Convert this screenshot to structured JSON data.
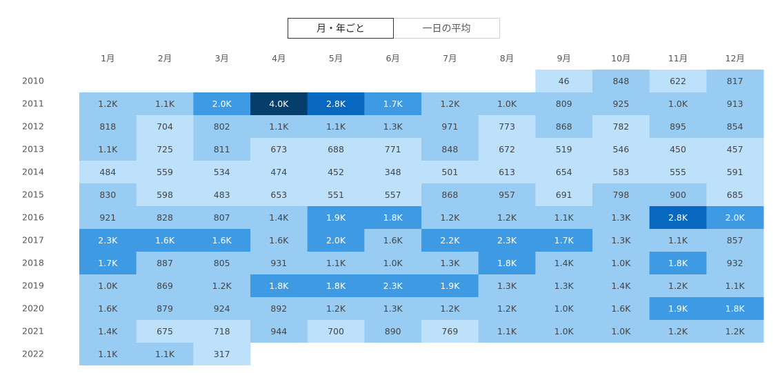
{
  "toggle": {
    "monthly_label": "月・年ごと",
    "daily_label": "一日の平均",
    "active": "monthly"
  },
  "chart_data": {
    "type": "heatmap",
    "title": "",
    "xlabel": "",
    "ylabel": "",
    "grid": false,
    "legend": "none",
    "color_scale": [
      "#bde0fb",
      "#98ccf3",
      "#3e9be3",
      "#0868bf",
      "#063e6b"
    ],
    "x": [
      "1月",
      "2月",
      "3月",
      "4月",
      "5月",
      "6月",
      "7月",
      "8月",
      "9月",
      "10月",
      "11月",
      "12月"
    ],
    "y": [
      "2010",
      "2011",
      "2012",
      "2013",
      "2014",
      "2015",
      "2016",
      "2017",
      "2018",
      "2019",
      "2020",
      "2021",
      "2022"
    ],
    "values": [
      [
        null,
        null,
        null,
        null,
        null,
        null,
        null,
        null,
        46,
        848,
        622,
        817
      ],
      [
        1200,
        1100,
        2000,
        4000,
        2800,
        1700,
        1200,
        1000,
        809,
        925,
        1000,
        913
      ],
      [
        818,
        704,
        802,
        1100,
        1100,
        1300,
        971,
        773,
        868,
        782,
        895,
        854
      ],
      [
        1100,
        725,
        811,
        673,
        688,
        771,
        848,
        672,
        519,
        546,
        450,
        457
      ],
      [
        484,
        559,
        534,
        474,
        452,
        348,
        501,
        613,
        654,
        583,
        555,
        591
      ],
      [
        830,
        598,
        483,
        653,
        551,
        557,
        868,
        957,
        691,
        798,
        900,
        685
      ],
      [
        921,
        828,
        807,
        1400,
        1900,
        1800,
        1200,
        1200,
        1100,
        1300,
        2800,
        2000
      ],
      [
        2300,
        1600,
        1600,
        1600,
        2000,
        1600,
        2200,
        2300,
        1700,
        1300,
        1100,
        857
      ],
      [
        1700,
        887,
        805,
        931,
        1100,
        1000,
        1300,
        1800,
        1400,
        1000,
        1800,
        932
      ],
      [
        1000,
        869,
        1200,
        1800,
        1800,
        2300,
        1900,
        1300,
        1300,
        1400,
        1200,
        1100
      ],
      [
        1600,
        879,
        924,
        892,
        1200,
        1300,
        1200,
        1200,
        1000,
        1600,
        1900,
        1800
      ],
      [
        1400,
        675,
        718,
        944,
        700,
        890,
        769,
        1100,
        1000,
        1000,
        1200,
        1200
      ],
      [
        1100,
        1100,
        317,
        null,
        null,
        null,
        null,
        null,
        null,
        null,
        null,
        null
      ]
    ],
    "labels": [
      [
        null,
        null,
        null,
        null,
        null,
        null,
        null,
        null,
        "46",
        "848",
        "622",
        "817"
      ],
      [
        "1.2K",
        "1.1K",
        "2.0K",
        "4.0K",
        "2.8K",
        "1.7K",
        "1.2K",
        "1.0K",
        "809",
        "925",
        "1.0K",
        "913"
      ],
      [
        "818",
        "704",
        "802",
        "1.1K",
        "1.1K",
        "1.3K",
        "971",
        "773",
        "868",
        "782",
        "895",
        "854"
      ],
      [
        "1.1K",
        "725",
        "811",
        "673",
        "688",
        "771",
        "848",
        "672",
        "519",
        "546",
        "450",
        "457"
      ],
      [
        "484",
        "559",
        "534",
        "474",
        "452",
        "348",
        "501",
        "613",
        "654",
        "583",
        "555",
        "591"
      ],
      [
        "830",
        "598",
        "483",
        "653",
        "551",
        "557",
        "868",
        "957",
        "691",
        "798",
        "900",
        "685"
      ],
      [
        "921",
        "828",
        "807",
        "1.4K",
        "1.9K",
        "1.8K",
        "1.2K",
        "1.2K",
        "1.1K",
        "1.3K",
        "2.8K",
        "2.0K"
      ],
      [
        "2.3K",
        "1.6K",
        "1.6K",
        "1.6K",
        "2.0K",
        "1.6K",
        "2.2K",
        "2.3K",
        "1.7K",
        "1.3K",
        "1.1K",
        "857"
      ],
      [
        "1.7K",
        "887",
        "805",
        "931",
        "1.1K",
        "1.0K",
        "1.3K",
        "1.8K",
        "1.4K",
        "1.0K",
        "1.8K",
        "932"
      ],
      [
        "1.0K",
        "869",
        "1.2K",
        "1.8K",
        "1.8K",
        "2.3K",
        "1.9K",
        "1.3K",
        "1.3K",
        "1.4K",
        "1.2K",
        "1.1K"
      ],
      [
        "1.6K",
        "879",
        "924",
        "892",
        "1.2K",
        "1.3K",
        "1.2K",
        "1.2K",
        "1.0K",
        "1.6K",
        "1.9K",
        "1.8K"
      ],
      [
        "1.4K",
        "675",
        "718",
        "944",
        "700",
        "890",
        "769",
        "1.1K",
        "1.0K",
        "1.0K",
        "1.2K",
        "1.2K"
      ],
      [
        "1.1K",
        "1.1K",
        "317",
        null,
        null,
        null,
        null,
        null,
        null,
        null,
        null,
        null
      ]
    ],
    "levels": [
      [
        null,
        null,
        null,
        null,
        null,
        null,
        null,
        null,
        0,
        1,
        0,
        1
      ],
      [
        1,
        1,
        2,
        4,
        3,
        2,
        1,
        1,
        1,
        1,
        1,
        1
      ],
      [
        1,
        0,
        1,
        1,
        1,
        1,
        1,
        0,
        1,
        0,
        1,
        1
      ],
      [
        1,
        0,
        1,
        0,
        0,
        0,
        1,
        0,
        0,
        0,
        0,
        0
      ],
      [
        0,
        0,
        0,
        0,
        0,
        0,
        0,
        0,
        0,
        0,
        0,
        0
      ],
      [
        1,
        0,
        0,
        0,
        0,
        0,
        1,
        1,
        0,
        1,
        1,
        0
      ],
      [
        1,
        1,
        1,
        1,
        2,
        2,
        1,
        1,
        1,
        1,
        3,
        2
      ],
      [
        2,
        2,
        2,
        1,
        2,
        1,
        2,
        2,
        2,
        1,
        1,
        1
      ],
      [
        2,
        1,
        1,
        1,
        1,
        1,
        1,
        2,
        1,
        1,
        2,
        1
      ],
      [
        1,
        1,
        1,
        2,
        2,
        2,
        2,
        1,
        1,
        1,
        1,
        1
      ],
      [
        1,
        1,
        1,
        1,
        1,
        1,
        1,
        1,
        1,
        1,
        2,
        2
      ],
      [
        1,
        0,
        0,
        1,
        0,
        1,
        0,
        1,
        1,
        1,
        1,
        1
      ],
      [
        1,
        1,
        0,
        null,
        null,
        null,
        null,
        null,
        null,
        null,
        null,
        null
      ]
    ]
  }
}
